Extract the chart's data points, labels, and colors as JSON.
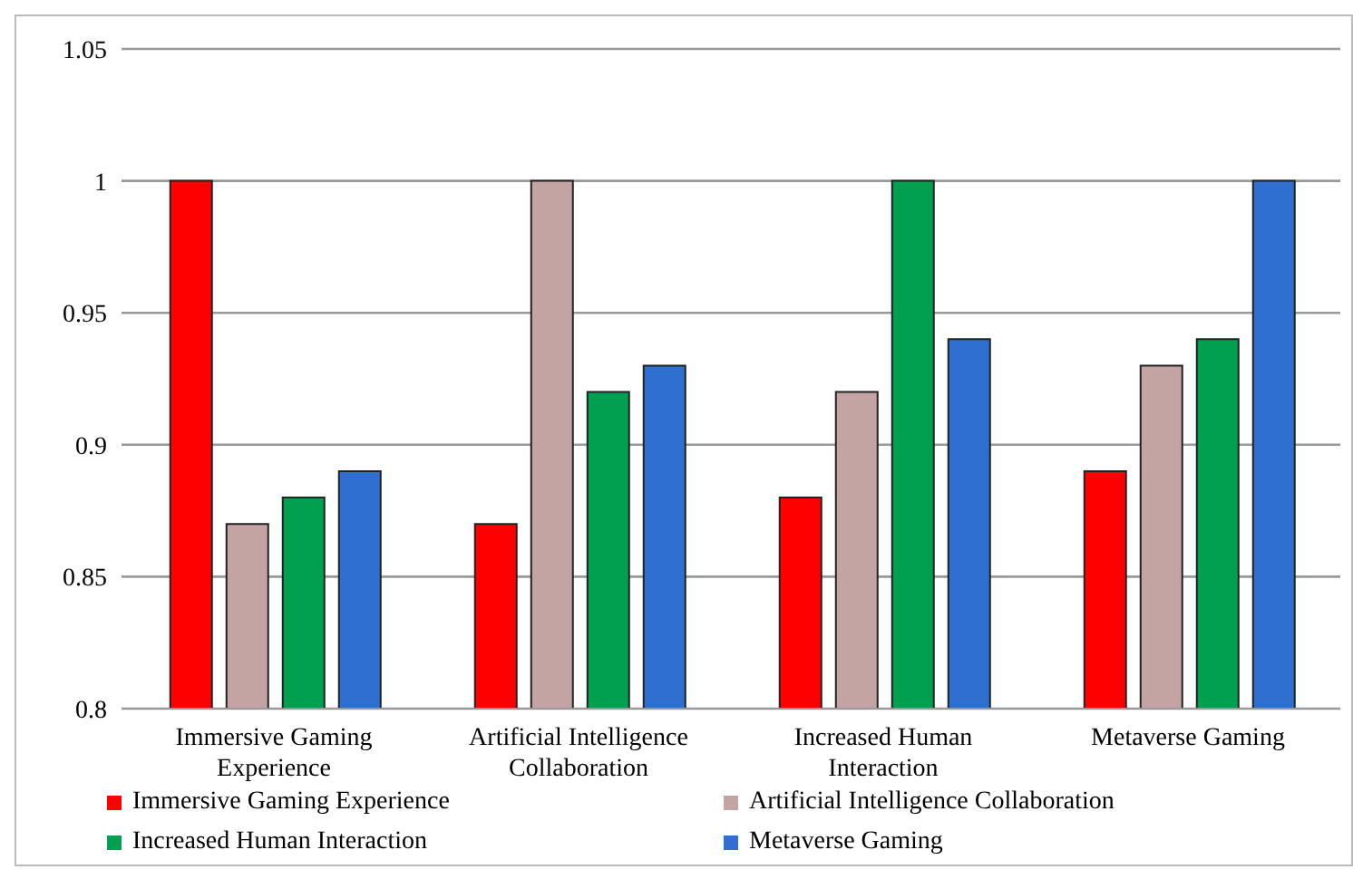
{
  "chart_data": {
    "type": "bar",
    "categories": [
      "Immersive Gaming Experience",
      "Artificial Intelligence Collaboration",
      "Increased Human Interaction",
      "Metaverse Gaming"
    ],
    "series": [
      {
        "name": "Immersive Gaming Experience",
        "color": "#ff0000",
        "values": [
          1,
          0.87,
          0.88,
          0.89
        ]
      },
      {
        "name": "Artificial Intelligence Collaboration",
        "color": "#c4a3a3",
        "values": [
          0.87,
          1,
          0.92,
          0.93
        ]
      },
      {
        "name": "Increased Human Interaction",
        "color": "#00a050",
        "values": [
          0.88,
          0.92,
          1,
          0.94
        ]
      },
      {
        "name": "Metaverse Gaming",
        "color": "#2f6fd0",
        "values": [
          0.89,
          0.93,
          0.94,
          1
        ]
      }
    ],
    "ylim": [
      0.8,
      1.05
    ],
    "yticks": [
      0.8,
      0.85,
      0.9,
      0.95,
      1,
      1.05
    ],
    "grid": "y",
    "legend": "bottom"
  }
}
